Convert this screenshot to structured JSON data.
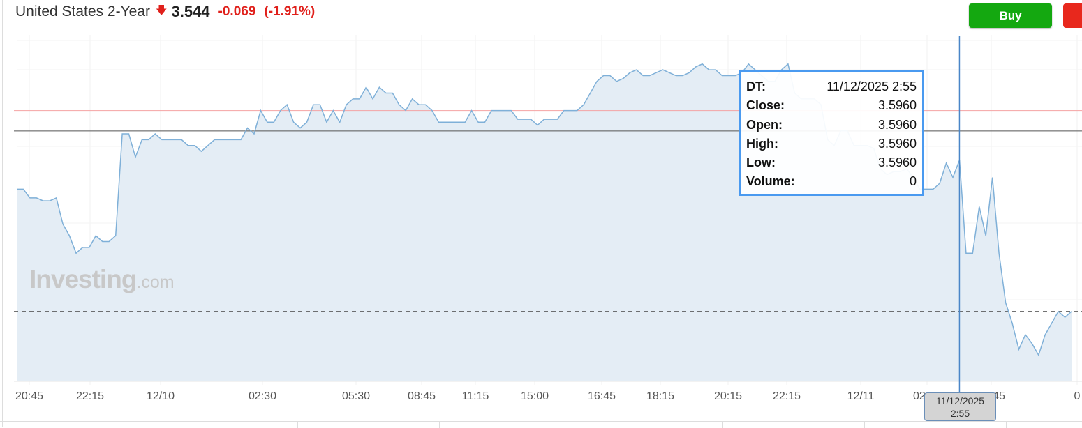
{
  "header": {
    "title": "United States 2-Year",
    "direction_icon": "arrow-down-icon",
    "price": "3.544",
    "change": "-0.069",
    "change_pct": "(-1.91%)",
    "down_color": "#e0201b"
  },
  "actions": {
    "buy_label": "Buy",
    "buy_color": "#14a810",
    "sell_color": "#e8281d"
  },
  "watermark": {
    "brand": "Investing",
    "suffix": ".com"
  },
  "tooltip": {
    "rows": [
      {
        "k": "DT:",
        "v": "11/12/2025 2:55"
      },
      {
        "k": "Close:",
        "v": "3.5960"
      },
      {
        "k": "Open:",
        "v": "3.5960"
      },
      {
        "k": "High:",
        "v": "3.5960"
      },
      {
        "k": "Low:",
        "v": "3.5960"
      },
      {
        "k": "Volume:",
        "v": "0"
      }
    ]
  },
  "crosshair": {
    "label_date": "11/12/2025",
    "label_time": "2:55",
    "index": 143
  },
  "chart_data": {
    "type": "area",
    "title": "",
    "xlabel": "",
    "ylabel": "",
    "ylim": [
      3.52,
      3.639
    ],
    "grid": true,
    "line_color": "#7fb0d8",
    "fill_color": "#e4edf5",
    "x_tick_labels": [
      "20:45",
      "22:15",
      "12/10",
      "02:30",
      "05:30",
      "08:45",
      "11:15",
      "15:00",
      "16:45",
      "18:15",
      "20:15",
      "22:15",
      "12/11",
      "02:30",
      "03:45",
      "0"
    ],
    "reference_lines": [
      {
        "value": 3.613,
        "color": "#f5a3a3",
        "style": "solid"
      },
      {
        "value": 3.606,
        "color": "#555555",
        "style": "solid"
      },
      {
        "value": 3.544,
        "color": "#444444",
        "style": "dashed"
      }
    ],
    "values": [
      3.586,
      3.586,
      3.583,
      3.583,
      3.582,
      3.582,
      3.583,
      3.574,
      3.57,
      3.564,
      3.566,
      3.566,
      3.57,
      3.568,
      3.568,
      3.57,
      3.605,
      3.605,
      3.597,
      3.603,
      3.603,
      3.605,
      3.603,
      3.603,
      3.603,
      3.603,
      3.601,
      3.601,
      3.599,
      3.601,
      3.603,
      3.603,
      3.603,
      3.603,
      3.603,
      3.607,
      3.605,
      3.613,
      3.609,
      3.609,
      3.613,
      3.615,
      3.609,
      3.607,
      3.609,
      3.615,
      3.615,
      3.609,
      3.613,
      3.609,
      3.615,
      3.617,
      3.617,
      3.621,
      3.617,
      3.621,
      3.619,
      3.619,
      3.615,
      3.613,
      3.617,
      3.615,
      3.615,
      3.613,
      3.609,
      3.609,
      3.609,
      3.609,
      3.609,
      3.613,
      3.609,
      3.609,
      3.613,
      3.613,
      3.613,
      3.613,
      3.61,
      3.61,
      3.61,
      3.608,
      3.61,
      3.61,
      3.61,
      3.613,
      3.613,
      3.613,
      3.615,
      3.619,
      3.623,
      3.625,
      3.625,
      3.623,
      3.624,
      3.626,
      3.627,
      3.625,
      3.625,
      3.626,
      3.627,
      3.626,
      3.625,
      3.625,
      3.626,
      3.628,
      3.629,
      3.627,
      3.627,
      3.625,
      3.625,
      3.625,
      3.626,
      3.629,
      3.627,
      3.625,
      3.623,
      3.623,
      3.627,
      3.629,
      3.619,
      3.617,
      3.617,
      3.617,
      3.615,
      3.603,
      3.601,
      3.606,
      3.606,
      3.601,
      3.601,
      3.601,
      3.6,
      3.593,
      3.591,
      3.592,
      3.592,
      3.593,
      3.59,
      3.586,
      3.586,
      3.586,
      3.588,
      3.595,
      3.59,
      3.596,
      3.564,
      3.564,
      3.58,
      3.57,
      3.59,
      3.564,
      3.547,
      3.54,
      3.531,
      3.536,
      3.533,
      3.529,
      3.536,
      3.54,
      3.544,
      3.542,
      3.544
    ]
  }
}
